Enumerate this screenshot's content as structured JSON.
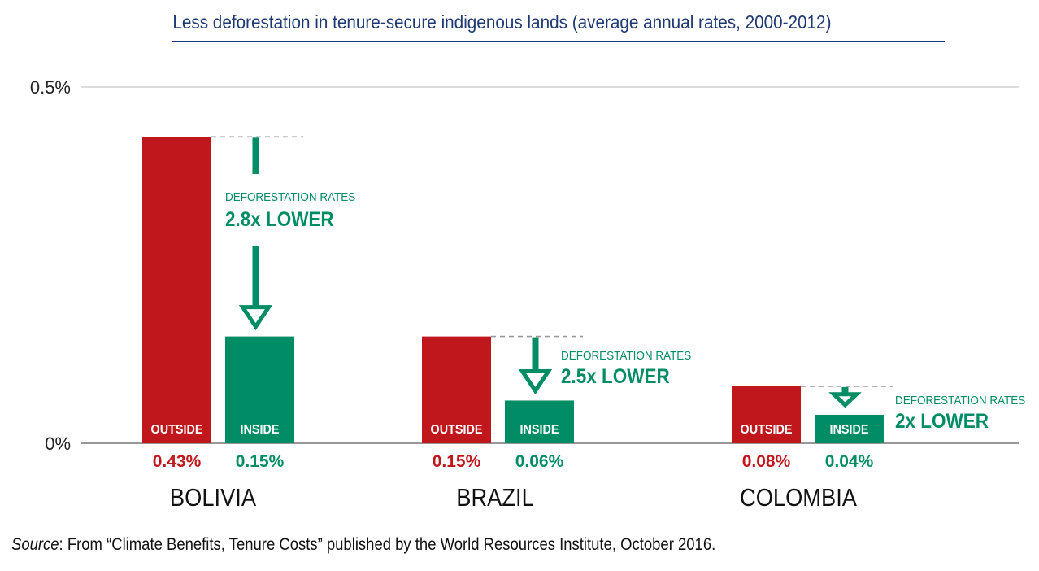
{
  "chart_data": {
    "type": "bar",
    "title": "Less deforestation in tenure-secure indigenous lands (average annual rates, 2000-2012)",
    "categories": [
      "BOLIVIA",
      "BRAZIL",
      "COLOMBIA"
    ],
    "series": [
      {
        "name": "OUTSIDE",
        "values": [
          0.43,
          0.15,
          0.08
        ],
        "labels": [
          "0.43%",
          "0.15%",
          "0.08%"
        ],
        "color": "#c0171d"
      },
      {
        "name": "INSIDE",
        "values": [
          0.15,
          0.06,
          0.04
        ],
        "labels": [
          "0.15%",
          "0.06%",
          "0.04%"
        ],
        "color": "#008c64"
      }
    ],
    "yticks": [
      "0%",
      "0.5%"
    ],
    "ylim": [
      0,
      0.5
    ],
    "annotations": [
      {
        "category": "BOLIVIA",
        "line1": "DEFORESTATION RATES",
        "line2": "2.8x LOWER"
      },
      {
        "category": "BRAZIL",
        "line1": "DEFORESTATION RATES",
        "line2": "2.5x LOWER"
      },
      {
        "category": "COLOMBIA",
        "line1": "DEFORESTATION RATES",
        "line2": "2x LOWER"
      }
    ],
    "grid": true,
    "legend": "none"
  },
  "source": {
    "label": "Source",
    "text": ": From “Climate Benefits, Tenure Costs” published by the World Resources Institute, October 2016."
  },
  "colors": {
    "outside": "#c0171d",
    "inside": "#008c64",
    "title": "#1f3a73"
  }
}
